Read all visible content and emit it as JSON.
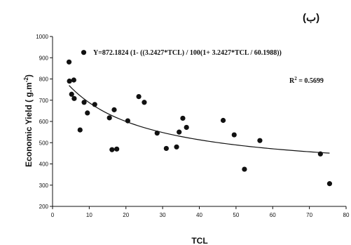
{
  "panel_label": "(ب)",
  "chart_data": {
    "type": "scatter",
    "xlabel": "TCL",
    "ylabel": "Economic Yield ( g.m",
    "ylabel_sup": "-2",
    "ylabel_end": ")",
    "xlim": [
      0,
      80
    ],
    "ylim": [
      200,
      1000
    ],
    "xticks": [
      "0",
      "10",
      "20",
      "30",
      "40",
      "50",
      "60",
      "70",
      "80"
    ],
    "yticks": [
      "200",
      "300",
      "400",
      "500",
      "600",
      "700",
      "800",
      "900",
      "1000"
    ],
    "grid": false,
    "equation": "Y=872.1824 (1- ((3.2427*TCL) / 100(1+ 3.2427*TCL / 60.1988))",
    "r2_label": "R",
    "r2_sup": "2",
    "r2_value": " = 0.5699",
    "points": [
      {
        "x": 4.5,
        "y": 880
      },
      {
        "x": 4.6,
        "y": 790
      },
      {
        "x": 5.2,
        "y": 728
      },
      {
        "x": 5.8,
        "y": 795
      },
      {
        "x": 5.9,
        "y": 708
      },
      {
        "x": 7.5,
        "y": 560
      },
      {
        "x": 8.5,
        "y": 925
      },
      {
        "x": 8.6,
        "y": 690
      },
      {
        "x": 9.5,
        "y": 640
      },
      {
        "x": 11.5,
        "y": 680
      },
      {
        "x": 15.5,
        "y": 617
      },
      {
        "x": 16.2,
        "y": 467
      },
      {
        "x": 16.8,
        "y": 655
      },
      {
        "x": 17.5,
        "y": 470
      },
      {
        "x": 20.5,
        "y": 603
      },
      {
        "x": 23.5,
        "y": 717
      },
      {
        "x": 25.0,
        "y": 690
      },
      {
        "x": 28.5,
        "y": 545
      },
      {
        "x": 31.0,
        "y": 473
      },
      {
        "x": 33.8,
        "y": 480
      },
      {
        "x": 34.5,
        "y": 550
      },
      {
        "x": 35.5,
        "y": 615
      },
      {
        "x": 36.5,
        "y": 572
      },
      {
        "x": 46.5,
        "y": 605
      },
      {
        "x": 49.5,
        "y": 537
      },
      {
        "x": 52.3,
        "y": 375
      },
      {
        "x": 56.5,
        "y": 510
      },
      {
        "x": 73.0,
        "y": 447
      },
      {
        "x": 75.5,
        "y": 307
      }
    ],
    "fit_curve": {
      "a": 872.1824,
      "b": 3.2427,
      "c": 60.1988,
      "x_range": [
        4.5,
        75.5
      ]
    }
  }
}
